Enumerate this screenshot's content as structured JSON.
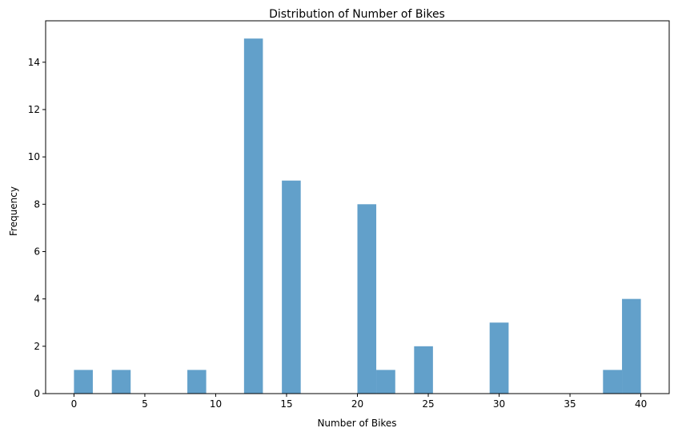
{
  "chart_data": {
    "type": "bar",
    "title": "Distribution of Number of Bikes",
    "xlabel": "Number of Bikes",
    "ylabel": "Frequency",
    "xlim": [
      -2,
      42
    ],
    "ylim": [
      0,
      15.75
    ],
    "xticks": [
      0,
      5,
      10,
      15,
      20,
      25,
      30,
      35,
      40
    ],
    "yticks": [
      0,
      2,
      4,
      6,
      8,
      10,
      12,
      14
    ],
    "bar_color": "#1f77b4",
    "bar_opacity": 0.7,
    "bins": [
      {
        "x0": 0.0,
        "x1": 1.33,
        "count": 1
      },
      {
        "x0": 2.67,
        "x1": 4.0,
        "count": 1
      },
      {
        "x0": 8.0,
        "x1": 9.33,
        "count": 1
      },
      {
        "x0": 12.0,
        "x1": 13.33,
        "count": 15
      },
      {
        "x0": 14.67,
        "x1": 16.0,
        "count": 9
      },
      {
        "x0": 20.0,
        "x1": 21.33,
        "count": 8
      },
      {
        "x0": 21.33,
        "x1": 22.67,
        "count": 1
      },
      {
        "x0": 24.0,
        "x1": 25.33,
        "count": 2
      },
      {
        "x0": 29.33,
        "x1": 30.67,
        "count": 3
      },
      {
        "x0": 37.33,
        "x1": 38.67,
        "count": 1
      },
      {
        "x0": 38.67,
        "x1": 40.0,
        "count": 4
      }
    ]
  }
}
